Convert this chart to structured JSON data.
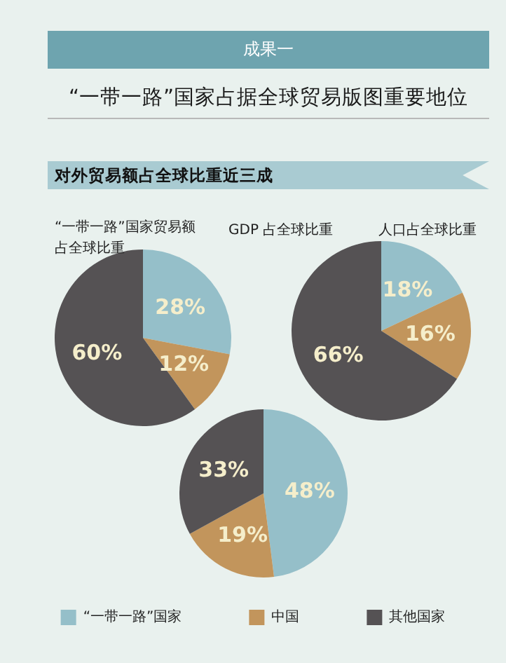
{
  "chart_data": [
    {
      "type": "pie",
      "title": "“一带一路”国家贸易额占全球比重",
      "annotations": [
        "成果一",
        "“一带一路”国家占据全球贸易版图重要地位",
        "对外贸易额占全球比重近三成"
      ],
      "categories": [
        null,
        null,
        null
      ],
      "values": [
        28,
        12,
        60
      ],
      "value_labels": [
        "28%",
        "12%",
        "60%"
      ],
      "colors": [
        "#95bfc9",
        "#c2955c",
        "#555254"
      ]
    },
    {
      "type": "pie",
      "title": "人口占全球比重",
      "categories": [
        null,
        null,
        null
      ],
      "values": [
        18,
        16,
        66
      ],
      "value_labels": [
        "18%",
        "16%",
        "66%"
      ],
      "colors": [
        "#95bfc9",
        "#c2955c",
        "#555254"
      ]
    },
    {
      "type": "pie",
      "title": "GDP 占全球比重",
      "categories": [
        "“一带一路”国家",
        "中国",
        "其他国家"
      ],
      "values": [
        48,
        19,
        33
      ],
      "value_labels": [
        "48%",
        "19%",
        "33%"
      ],
      "colors": [
        "#95bfc9",
        "#c2955c",
        "#555254"
      ],
      "legend": "bottom"
    }
  ]
}
